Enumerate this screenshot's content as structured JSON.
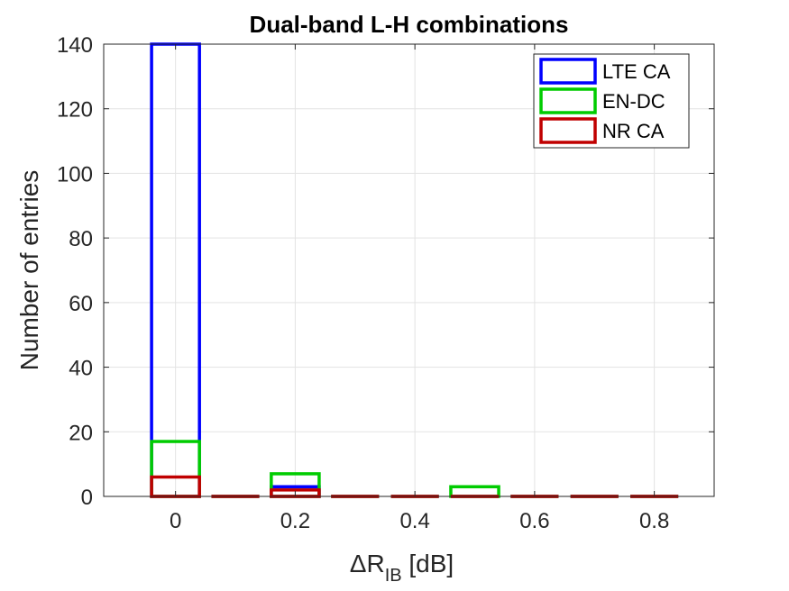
{
  "chart_data": {
    "type": "bar",
    "title": "Dual-band L-H combinations",
    "xlabel": {
      "main": "ΔR",
      "sub": "IB",
      "unit": " [dB]"
    },
    "ylabel": "Number of entries",
    "xlim": [
      -0.12,
      0.9
    ],
    "ylim": [
      0,
      140
    ],
    "xticks": [
      0,
      0.2,
      0.4,
      0.6,
      0.8
    ],
    "xtick_labels": [
      "0",
      "0.2",
      "0.4",
      "0.6",
      "0.8"
    ],
    "yticks": [
      0,
      20,
      40,
      60,
      80,
      100,
      120,
      140
    ],
    "ytick_labels": [
      "0",
      "20",
      "40",
      "60",
      "80",
      "100",
      "120",
      "140"
    ],
    "grid": true,
    "legend_position": "top-right",
    "bar_width": 0.08,
    "x": [
      0,
      0.1,
      0.2,
      0.3,
      0.4,
      0.5,
      0.6,
      0.7,
      0.8
    ],
    "series": [
      {
        "name": "LTE CA",
        "color": "#0000ff",
        "values": [
          140,
          0,
          3,
          0,
          0,
          0,
          0,
          0,
          0
        ]
      },
      {
        "name": "EN-DC",
        "color": "#00cc00",
        "values": [
          17,
          0,
          7,
          0,
          0,
          3,
          0,
          0,
          0
        ]
      },
      {
        "name": "NR CA",
        "color": "#c00000",
        "values": [
          6,
          0,
          2,
          0,
          0,
          0,
          0,
          0,
          0
        ]
      }
    ]
  }
}
